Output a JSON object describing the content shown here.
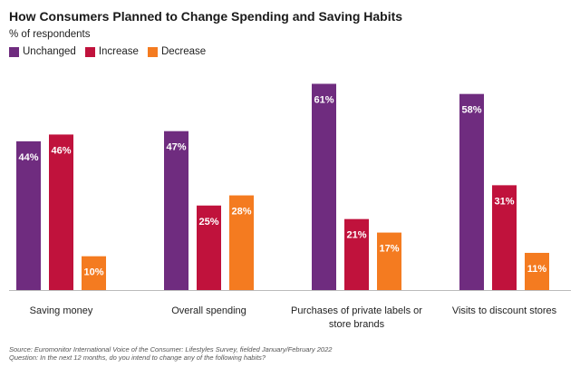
{
  "chart_data": {
    "type": "bar",
    "title": "How Consumers Planned to Change Spending and Saving Habits",
    "subtitle": "% of respondents",
    "categories": [
      [
        "Saving money"
      ],
      [
        "Overall spending"
      ],
      [
        "Purchases of private labels or",
        "store brands"
      ],
      [
        "Visits to discount stores"
      ]
    ],
    "series": [
      {
        "name": "Unchanged",
        "color": "#6f2c7f",
        "values": [
          44,
          47,
          61,
          58
        ]
      },
      {
        "name": "Increase",
        "color": "#c0123c",
        "values": [
          46,
          25,
          21,
          31
        ]
      },
      {
        "name": "Decrease",
        "color": "#f47b20",
        "values": [
          10,
          28,
          17,
          11
        ]
      }
    ],
    "value_suffix": "%",
    "ylim": [
      0,
      65
    ],
    "grid": false,
    "legend_position": "top-left"
  },
  "footnote": {
    "source": "Source: Euromonitor International Voice of the Consumer: Lifestyles Survey, fielded January/February 2022",
    "question": "Question: In the next 12 months, do you intend to change any of the following habits?"
  }
}
